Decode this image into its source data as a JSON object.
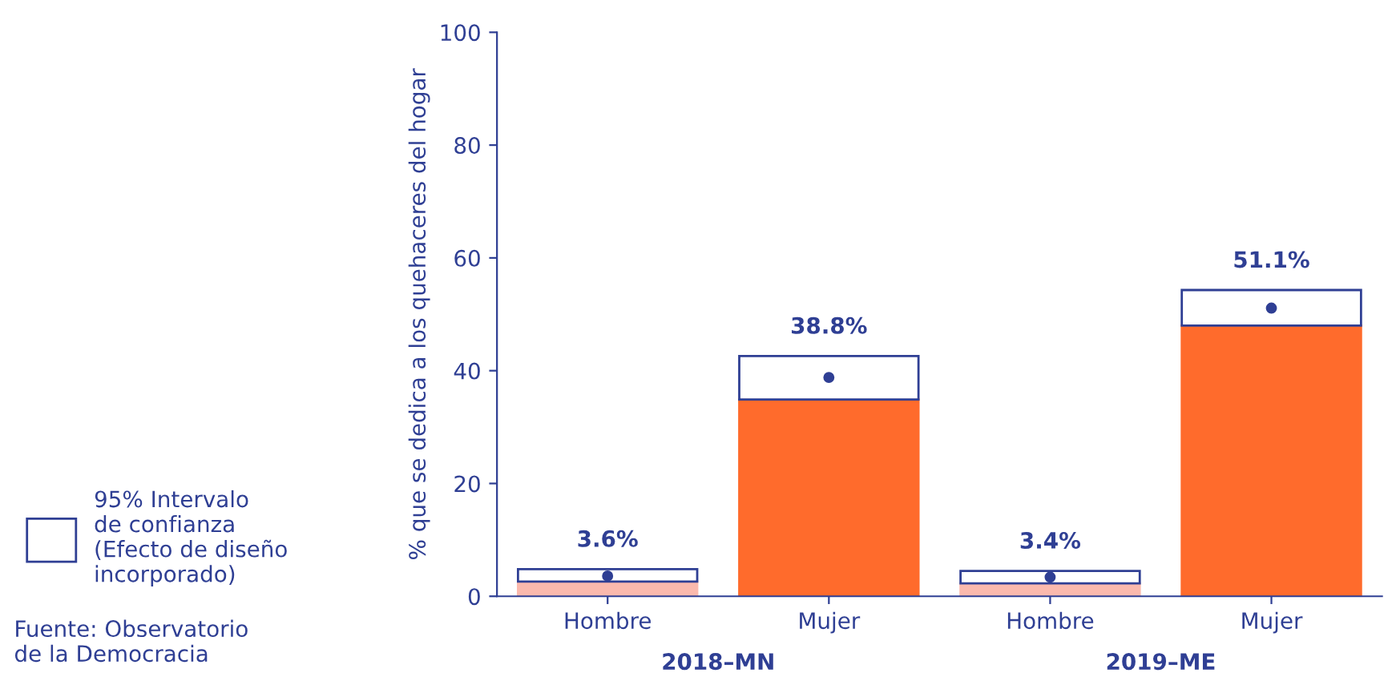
{
  "chart_data": {
    "type": "bar",
    "stacked": true,
    "ylabel": "% que se dedica a los quehaceres del hogar",
    "categories": [
      "Hombre",
      "Mujer",
      "Hombre",
      "Mujer"
    ],
    "series": [
      {
        "colors": [
          "#fbb9ad",
          "#ff6b2c",
          "#fbb9ad",
          "#ff6b2c"
        ],
        "values": [
          2.6,
          34.9,
          2.3,
          48.0
        ]
      },
      {
        "name": "95% Intervalo\nde confianza\n(Efecto de diseño\nincorporado)",
        "color": "#ffffff",
        "values": [
          2.2,
          7.7,
          2.2,
          6.3
        ]
      },
      {
        "type": "scatter",
        "color": "#2f3f94",
        "values": [
          3.6,
          38.8,
          3.4,
          51.1
        ],
        "value_labels": [
          "3.6%",
          "38.8%",
          "3.4%",
          "51.1%"
        ]
      }
    ],
    "ylim": [
      0,
      100
    ],
    "yticks": [
      0,
      20,
      40,
      60,
      80,
      100
    ],
    "grid": false,
    "legend": "left",
    "marker": "circle",
    "annotations": [
      "2018–MN",
      "2019–ME",
      "Fuente: Observatorio\nde la Democracia"
    ]
  }
}
